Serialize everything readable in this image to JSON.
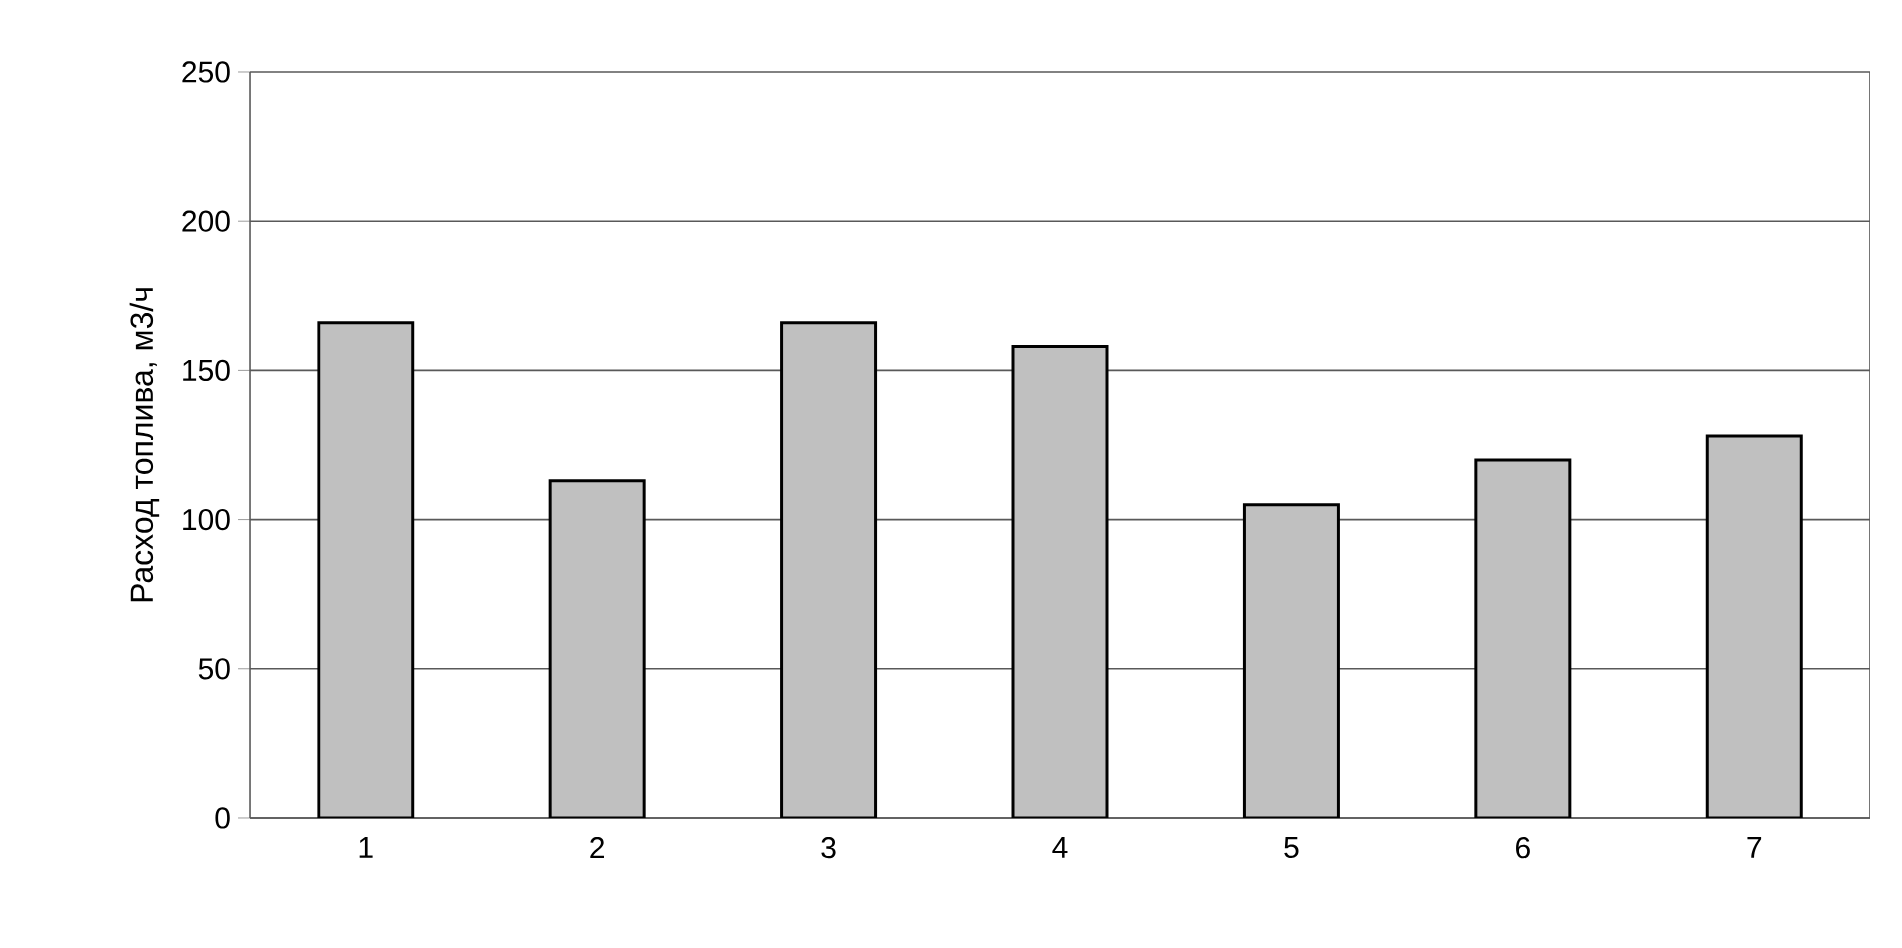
{
  "chart_data": {
    "type": "bar",
    "ylabel": "Расход топлива, м3/ч",
    "categories": [
      "1",
      "2",
      "3",
      "4",
      "5",
      "6",
      "7"
    ],
    "values": [
      166,
      113,
      166,
      158,
      105,
      120,
      128
    ],
    "color": "#c0c0c0",
    "ylim": [
      0,
      250
    ],
    "yticks": [
      0,
      50,
      100,
      150,
      200,
      250
    ],
    "grid": "y"
  }
}
